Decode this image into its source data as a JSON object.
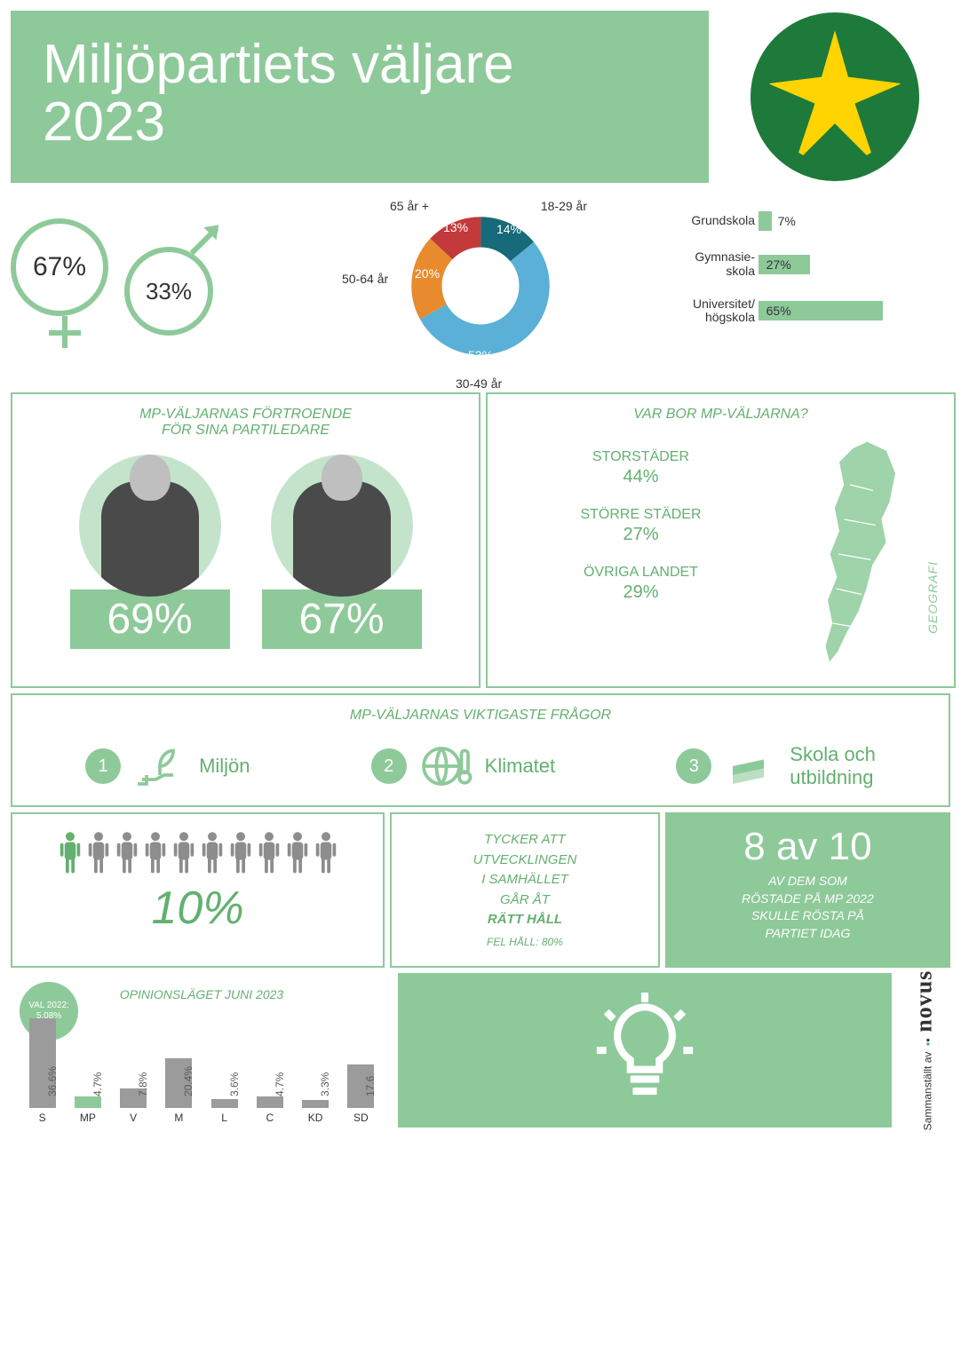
{
  "colors": {
    "primary_green": "#8ec99a",
    "dark_green": "#63b070",
    "logo_green": "#1e7a3a",
    "logo_yellow": "#ffd400",
    "white": "#ffffff",
    "gray": "#9b9b9b",
    "text_gray": "#5a5a5a"
  },
  "header": {
    "title_line1": "Miljöpartiets väljare",
    "title_line2": "2023"
  },
  "gender": {
    "female_pct": "67%",
    "male_pct": "33%"
  },
  "age_donut": {
    "type": "donut",
    "segments": [
      {
        "label": "18-29 år",
        "pct": "14%",
        "value": 14,
        "color": "#176a7a"
      },
      {
        "label": "30-49 år",
        "pct": "53%",
        "value": 53,
        "color": "#5ab0d6"
      },
      {
        "label": "50-64 år",
        "pct": "20%",
        "value": 20,
        "color": "#e88b2f"
      },
      {
        "label": "65 år +",
        "pct": "13%",
        "value": 13,
        "color": "#c23a3a"
      }
    ]
  },
  "education": {
    "type": "bar",
    "max": 100,
    "rows": [
      {
        "label": "Grundskola",
        "pct": "7%",
        "value": 7
      },
      {
        "label": "Gymnasie-\nskola",
        "pct": "27%",
        "value": 27
      },
      {
        "label": "Universitet/\nhögskola",
        "pct": "65%",
        "value": 65
      }
    ],
    "bar_color": "#8ec99a"
  },
  "leaders": {
    "title": "MP-VÄLJARNAS FÖRTROENDE\nFÖR SINA PARTILEDARE",
    "items": [
      {
        "pct": "69%"
      },
      {
        "pct": "67%"
      }
    ]
  },
  "geography": {
    "title": "VAR BOR MP-VÄLJARNA?",
    "side_label": "GEOGRAFI",
    "items": [
      {
        "label": "STORSTÄDER",
        "pct": "44%"
      },
      {
        "label": "STÖRRE STÄDER",
        "pct": "27%"
      },
      {
        "label": "ÖVRIGA LANDET",
        "pct": "29%"
      }
    ]
  },
  "issues": {
    "title": "MP-VÄLJARNAS VIKTIGASTE FRÅGOR",
    "items": [
      {
        "num": "1",
        "label": "Miljön"
      },
      {
        "num": "2",
        "label": "Klimatet"
      },
      {
        "num": "3",
        "label": "Skola och\nutbildning"
      }
    ]
  },
  "direction": {
    "people_total": 10,
    "people_green": 1,
    "big_pct": "10%",
    "text_lines": [
      "TYCKER ATT",
      "UTVECKLINGEN",
      "I SAMHÄLLET",
      "GÅR ÅT"
    ],
    "highlight": "RÄTT HÅLL",
    "sub": "FEL HÅLL: 80%"
  },
  "loyalty": {
    "headline": "8 av 10",
    "body": "AV DEM SOM\nRÖSTADE PÅ MP 2022\nSKULLE RÖSTA PÅ\nPARTIET IDAG"
  },
  "polls": {
    "title": "OPINIONSLÄGET JUNI 2023",
    "badge_label": "VAL 2022:",
    "badge_value": "5,08%",
    "type": "bar",
    "max": 40,
    "parties": [
      {
        "code": "S",
        "value": 36.6,
        "label": "36.6%",
        "highlight": false
      },
      {
        "code": "MP",
        "value": 4.7,
        "label": "4.7%",
        "highlight": true
      },
      {
        "code": "V",
        "value": 7.8,
        "label": "7.8%",
        "highlight": false
      },
      {
        "code": "M",
        "value": 20.4,
        "label": "20.4%",
        "highlight": false
      },
      {
        "code": "L",
        "value": 3.6,
        "label": "3.6%",
        "highlight": false
      },
      {
        "code": "C",
        "value": 4.7,
        "label": "4.7%",
        "highlight": false
      },
      {
        "code": "KD",
        "value": 3.3,
        "label": "3.3%",
        "highlight": false
      },
      {
        "code": "SD",
        "value": 17.6,
        "label": "17.6",
        "highlight": false
      }
    ]
  },
  "credit": {
    "prefix": "Sammanställt av",
    "brand": "novus"
  }
}
